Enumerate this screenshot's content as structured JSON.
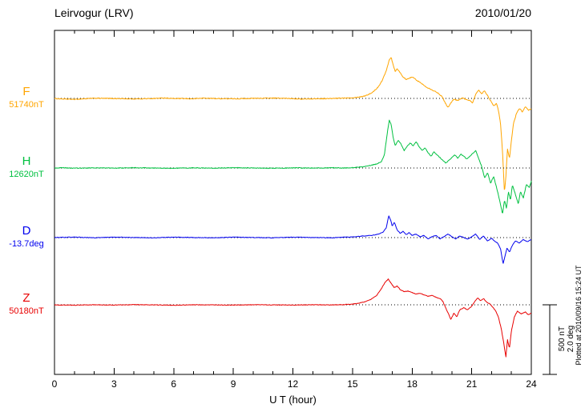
{
  "header": {
    "title": "Leirvogur (LRV)",
    "date": "2010/01/20"
  },
  "xaxis": {
    "label": "U T (hour)",
    "ticks": [
      0,
      3,
      6,
      9,
      12,
      15,
      18,
      21,
      24
    ],
    "minor_step": 1,
    "min": 0,
    "max": 24
  },
  "scale_bar": {
    "label_line1": "500 nT",
    "label_line2": "2.0 deg",
    "nT": 500,
    "deg": 2.0
  },
  "footer_note": "Plotted at 2010/09/16 15:24 UT",
  "chart_data": {
    "type": "line",
    "title": "Leirvogur (LRV) magnetogram 2010/01/20",
    "xlabel": "U T (hour)",
    "x_range": [
      0,
      24
    ],
    "grid": "dotted baselines per trace",
    "legend_position": "left margin",
    "scale": {
      "nT": 500,
      "deg": 2.0
    },
    "series": [
      {
        "name": "F",
        "label": "F",
        "baseline_label": "51740nT",
        "unit": "nT",
        "color": "#FFA500",
        "baseline_frac": 0.198,
        "noise": 3,
        "points": [
          [
            0,
            0
          ],
          [
            0.5,
            -4
          ],
          [
            1,
            -6
          ],
          [
            1.5,
            -2
          ],
          [
            2,
            2
          ],
          [
            3,
            0
          ],
          [
            4,
            -3
          ],
          [
            5,
            0
          ],
          [
            5.5,
            4
          ],
          [
            6,
            0
          ],
          [
            7,
            -2
          ],
          [
            7.5,
            3
          ],
          [
            8,
            0
          ],
          [
            9,
            -2
          ],
          [
            10,
            1
          ],
          [
            11,
            3
          ],
          [
            12,
            0
          ],
          [
            12.5,
            -4
          ],
          [
            13,
            -2
          ],
          [
            14,
            0
          ],
          [
            14.5,
            3
          ],
          [
            15,
            6
          ],
          [
            15.3,
            10
          ],
          [
            15.6,
            18
          ],
          [
            15.9,
            35
          ],
          [
            16.1,
            55
          ],
          [
            16.3,
            85
          ],
          [
            16.5,
            130
          ],
          [
            16.7,
            200
          ],
          [
            16.85,
            280
          ],
          [
            16.95,
            295
          ],
          [
            17.05,
            240
          ],
          [
            17.15,
            195
          ],
          [
            17.25,
            215
          ],
          [
            17.4,
            185
          ],
          [
            17.55,
            155
          ],
          [
            17.7,
            135
          ],
          [
            17.85,
            145
          ],
          [
            18.0,
            155
          ],
          [
            18.15,
            140
          ],
          [
            18.3,
            125
          ],
          [
            18.45,
            110
          ],
          [
            18.6,
            95
          ],
          [
            18.75,
            80
          ],
          [
            18.9,
            70
          ],
          [
            19.1,
            55
          ],
          [
            19.3,
            40
          ],
          [
            19.5,
            15
          ],
          [
            19.65,
            -25
          ],
          [
            19.8,
            -65
          ],
          [
            19.95,
            -30
          ],
          [
            20.1,
            -5
          ],
          [
            20.3,
            -15
          ],
          [
            20.5,
            5
          ],
          [
            20.7,
            -5
          ],
          [
            20.9,
            -15
          ],
          [
            21.05,
            -30
          ],
          [
            21.2,
            30
          ],
          [
            21.35,
            60
          ],
          [
            21.5,
            35
          ],
          [
            21.65,
            55
          ],
          [
            21.8,
            20
          ],
          [
            21.95,
            -15
          ],
          [
            22.1,
            -55
          ],
          [
            22.25,
            -35
          ],
          [
            22.35,
            -90
          ],
          [
            22.45,
            -180
          ],
          [
            22.55,
            -380
          ],
          [
            22.65,
            -680
          ],
          [
            22.72,
            -560
          ],
          [
            22.8,
            -360
          ],
          [
            22.9,
            -430
          ],
          [
            23.0,
            -300
          ],
          [
            23.1,
            -180
          ],
          [
            23.25,
            -110
          ],
          [
            23.4,
            -70
          ],
          [
            23.55,
            -95
          ],
          [
            23.7,
            -60
          ],
          [
            23.85,
            -85
          ],
          [
            24,
            -75
          ]
        ]
      },
      {
        "name": "H",
        "label": "H",
        "baseline_label": "12620nT",
        "unit": "nT",
        "color": "#00C040",
        "baseline_frac": 0.4,
        "noise": 2.5,
        "points": [
          [
            0,
            0
          ],
          [
            0.5,
            2
          ],
          [
            1,
            -2
          ],
          [
            2,
            1
          ],
          [
            3,
            -1
          ],
          [
            4,
            2
          ],
          [
            5,
            0
          ],
          [
            6,
            -2
          ],
          [
            7,
            1
          ],
          [
            8,
            -1
          ],
          [
            9,
            2
          ],
          [
            10,
            0
          ],
          [
            11,
            -2
          ],
          [
            12,
            1
          ],
          [
            13,
            -1
          ],
          [
            14,
            2
          ],
          [
            14.5,
            0
          ],
          [
            15,
            3
          ],
          [
            15.3,
            6
          ],
          [
            15.6,
            10
          ],
          [
            15.9,
            18
          ],
          [
            16.2,
            28
          ],
          [
            16.45,
            45
          ],
          [
            16.6,
            90
          ],
          [
            16.75,
            250
          ],
          [
            16.85,
            345
          ],
          [
            16.95,
            310
          ],
          [
            17.05,
            215
          ],
          [
            17.15,
            160
          ],
          [
            17.3,
            200
          ],
          [
            17.45,
            170
          ],
          [
            17.6,
            125
          ],
          [
            17.75,
            155
          ],
          [
            17.9,
            180
          ],
          [
            18.05,
            160
          ],
          [
            18.2,
            190
          ],
          [
            18.35,
            155
          ],
          [
            18.5,
            125
          ],
          [
            18.65,
            145
          ],
          [
            18.8,
            110
          ],
          [
            18.95,
            85
          ],
          [
            19.1,
            115
          ],
          [
            19.25,
            95
          ],
          [
            19.4,
            75
          ],
          [
            19.55,
            55
          ],
          [
            19.7,
            35
          ],
          [
            19.85,
            55
          ],
          [
            20.0,
            75
          ],
          [
            20.15,
            95
          ],
          [
            20.3,
            70
          ],
          [
            20.45,
            100
          ],
          [
            20.6,
            85
          ],
          [
            20.75,
            65
          ],
          [
            20.9,
            85
          ],
          [
            21.05,
            105
          ],
          [
            21.2,
            125
          ],
          [
            21.35,
            70
          ],
          [
            21.5,
            10
          ],
          [
            21.65,
            -70
          ],
          [
            21.8,
            -35
          ],
          [
            21.95,
            -110
          ],
          [
            22.1,
            -60
          ],
          [
            22.25,
            -140
          ],
          [
            22.4,
            -230
          ],
          [
            22.55,
            -330
          ],
          [
            22.65,
            -230
          ],
          [
            22.75,
            -290
          ],
          [
            22.85,
            -170
          ],
          [
            22.95,
            -230
          ],
          [
            23.05,
            -120
          ],
          [
            23.2,
            -190
          ],
          [
            23.35,
            -260
          ],
          [
            23.45,
            -170
          ],
          [
            23.6,
            -215
          ],
          [
            23.75,
            -120
          ],
          [
            23.9,
            -140
          ],
          [
            24,
            -95
          ]
        ]
      },
      {
        "name": "D",
        "label": "D",
        "baseline_label": "-13.7deg",
        "unit": "deg",
        "color": "#0000EE",
        "baseline_frac": 0.602,
        "noise": 0.008,
        "points": [
          [
            0,
            0
          ],
          [
            1,
            0.01
          ],
          [
            2,
            -0.01
          ],
          [
            3,
            0.01
          ],
          [
            4,
            0
          ],
          [
            5,
            -0.01
          ],
          [
            6,
            0.01
          ],
          [
            7,
            0
          ],
          [
            8,
            -0.01
          ],
          [
            9,
            0.01
          ],
          [
            10,
            0
          ],
          [
            11,
            -0.01
          ],
          [
            12,
            0.01
          ],
          [
            13,
            0
          ],
          [
            14,
            -0.01
          ],
          [
            15,
            0.02
          ],
          [
            15.5,
            0.04
          ],
          [
            16,
            0.06
          ],
          [
            16.3,
            0.1
          ],
          [
            16.55,
            0.16
          ],
          [
            16.7,
            0.28
          ],
          [
            16.82,
            0.62
          ],
          [
            16.92,
            0.5
          ],
          [
            17.0,
            0.32
          ],
          [
            17.1,
            0.44
          ],
          [
            17.25,
            0.22
          ],
          [
            17.4,
            0.12
          ],
          [
            17.55,
            0.18
          ],
          [
            17.7,
            0.08
          ],
          [
            17.85,
            0.14
          ],
          [
            18.0,
            0.06
          ],
          [
            18.2,
            0.1
          ],
          [
            18.4,
            0.02
          ],
          [
            18.6,
            0.06
          ],
          [
            18.8,
            -0.04
          ],
          [
            19.0,
            0.02
          ],
          [
            19.2,
            0.06
          ],
          [
            19.4,
            -0.04
          ],
          [
            19.6,
            0.02
          ],
          [
            19.8,
            0.1
          ],
          [
            20.0,
            0.02
          ],
          [
            20.2,
            -0.04
          ],
          [
            20.4,
            0.04
          ],
          [
            20.6,
            0
          ],
          [
            20.8,
            -0.05
          ],
          [
            21.0,
            0.02
          ],
          [
            21.2,
            0.1
          ],
          [
            21.4,
            -0.05
          ],
          [
            21.6,
            0.04
          ],
          [
            21.8,
            -0.1
          ],
          [
            22.0,
            -0.02
          ],
          [
            22.15,
            -0.1
          ],
          [
            22.3,
            -0.16
          ],
          [
            22.45,
            -0.32
          ],
          [
            22.58,
            -0.76
          ],
          [
            22.68,
            -0.52
          ],
          [
            22.78,
            -0.3
          ],
          [
            22.9,
            -0.42
          ],
          [
            23.05,
            -0.22
          ],
          [
            23.2,
            -0.1
          ],
          [
            23.4,
            -0.16
          ],
          [
            23.6,
            -0.06
          ],
          [
            23.8,
            -0.12
          ],
          [
            24,
            -0.06
          ]
        ]
      },
      {
        "name": "Z",
        "label": "Z",
        "baseline_label": "50180nT",
        "unit": "nT",
        "color": "#E80000",
        "baseline_frac": 0.798,
        "noise": 2,
        "points": [
          [
            0,
            0
          ],
          [
            1,
            -2
          ],
          [
            2,
            1
          ],
          [
            3,
            -1
          ],
          [
            4,
            2
          ],
          [
            5,
            0
          ],
          [
            6,
            -2
          ],
          [
            7,
            1
          ],
          [
            8,
            0
          ],
          [
            9,
            -1
          ],
          [
            10,
            1
          ],
          [
            11,
            0
          ],
          [
            12,
            -1
          ],
          [
            13,
            1
          ],
          [
            14,
            0
          ],
          [
            14.5,
            2
          ],
          [
            15,
            6
          ],
          [
            15.3,
            12
          ],
          [
            15.6,
            22
          ],
          [
            15.9,
            38
          ],
          [
            16.2,
            65
          ],
          [
            16.45,
            115
          ],
          [
            16.65,
            165
          ],
          [
            16.8,
            185
          ],
          [
            16.95,
            155
          ],
          [
            17.1,
            125
          ],
          [
            17.25,
            135
          ],
          [
            17.4,
            110
          ],
          [
            17.6,
            95
          ],
          [
            17.8,
            100
          ],
          [
            18.0,
            88
          ],
          [
            18.2,
            78
          ],
          [
            18.4,
            84
          ],
          [
            18.6,
            72
          ],
          [
            18.8,
            62
          ],
          [
            19.0,
            68
          ],
          [
            19.2,
            55
          ],
          [
            19.4,
            45
          ],
          [
            19.55,
            25
          ],
          [
            19.7,
            -25
          ],
          [
            19.85,
            -70
          ],
          [
            19.95,
            -105
          ],
          [
            20.1,
            -60
          ],
          [
            20.25,
            -85
          ],
          [
            20.4,
            -35
          ],
          [
            20.6,
            -20
          ],
          [
            20.8,
            -35
          ],
          [
            21.0,
            -10
          ],
          [
            21.15,
            25
          ],
          [
            21.3,
            50
          ],
          [
            21.45,
            30
          ],
          [
            21.6,
            45
          ],
          [
            21.75,
            20
          ],
          [
            21.9,
            8
          ],
          [
            22.05,
            -15
          ],
          [
            22.2,
            -40
          ],
          [
            22.35,
            -90
          ],
          [
            22.5,
            -180
          ],
          [
            22.62,
            -280
          ],
          [
            22.72,
            -375
          ],
          [
            22.8,
            -250
          ],
          [
            22.9,
            -310
          ],
          [
            23.0,
            -185
          ],
          [
            23.15,
            -85
          ],
          [
            23.3,
            -45
          ],
          [
            23.5,
            -65
          ],
          [
            23.7,
            -50
          ],
          [
            23.85,
            -72
          ],
          [
            24,
            -60
          ]
        ]
      }
    ]
  }
}
